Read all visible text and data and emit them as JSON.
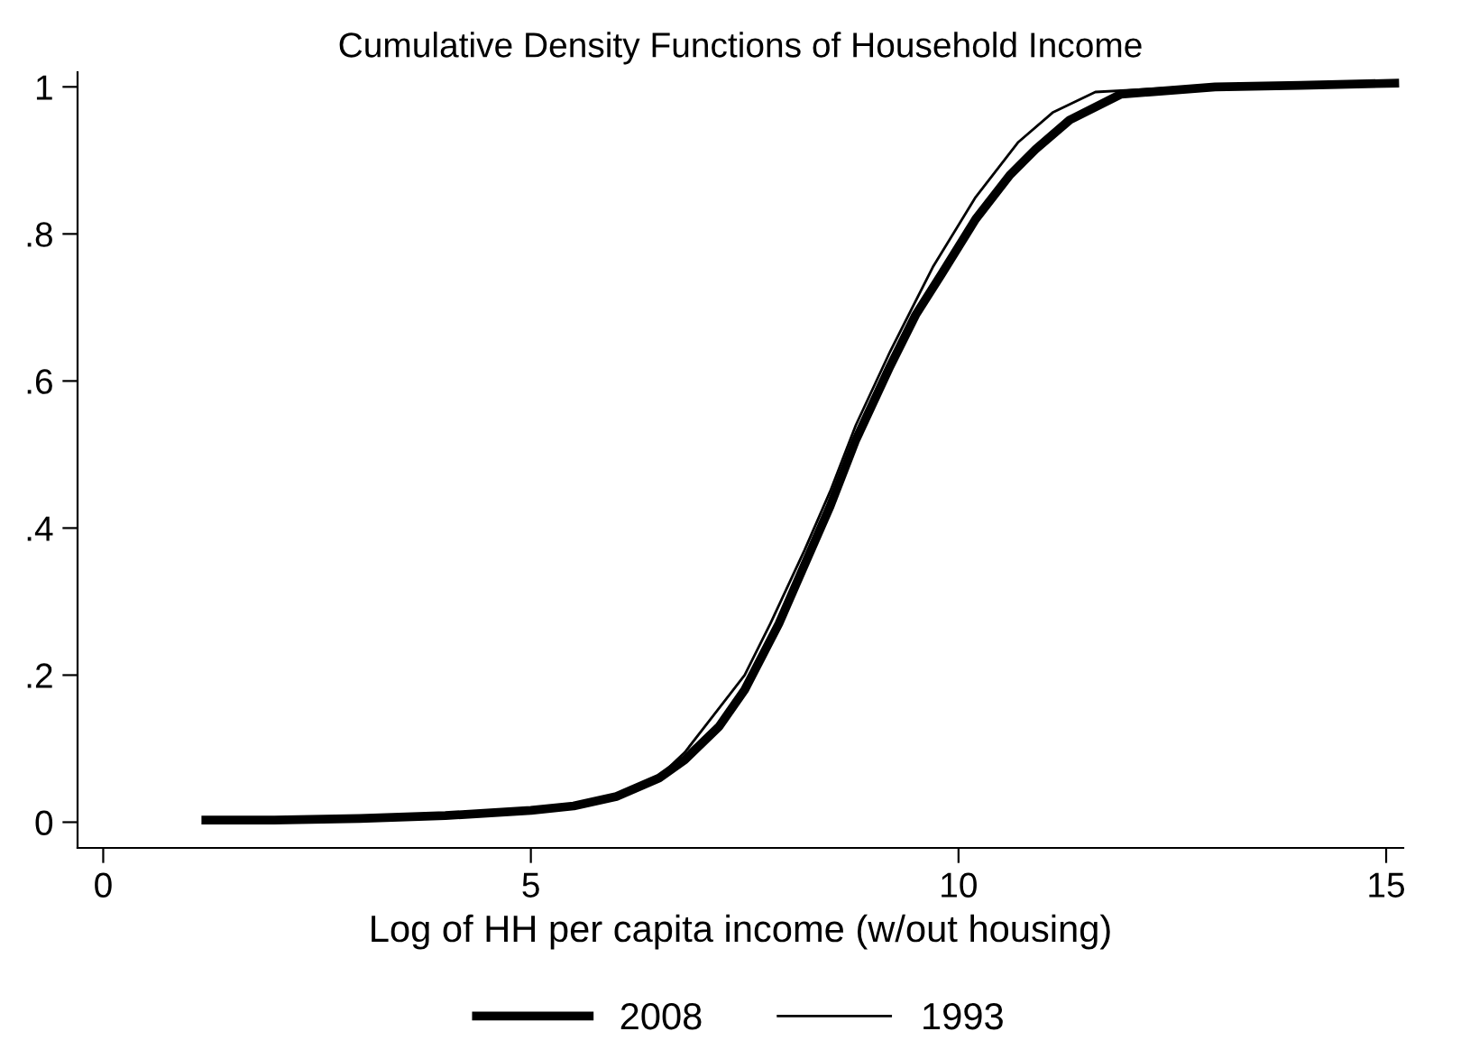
{
  "chart_data": {
    "type": "line",
    "title": "Cumulative Density Functions of Household Income",
    "xlabel": "Log of HH per capita income (w/out housing)",
    "xlim": [
      -0.3,
      15.2
    ],
    "xticks": [
      0,
      5,
      10,
      15
    ],
    "ylim": [
      -0.035,
      1.02
    ],
    "yticks": [
      0,
      {
        "value": 0.2,
        "label": ".2"
      },
      {
        "value": 0.4,
        "label": ".4"
      },
      {
        "value": 0.6,
        "label": ".6"
      },
      {
        "value": 0.8,
        "label": ".8"
      },
      1
    ],
    "grid": false,
    "legend": "bottom",
    "marker": "none",
    "line_style": "solid",
    "series": [
      {
        "name": "2008",
        "color": "#000000",
        "x": [
          1.2,
          2,
          3,
          4,
          5,
          5.5,
          6,
          6.5,
          6.8,
          7.2,
          7.5,
          7.9,
          8.2,
          8.5,
          8.8,
          9.2,
          9.5,
          9.8,
          10.2,
          10.6,
          10.9,
          11.3,
          11.9,
          13,
          14,
          15.1
        ],
        "values": [
          0.003,
          0.003,
          0.005,
          0.009,
          0.016,
          0.022,
          0.035,
          0.06,
          0.085,
          0.13,
          0.18,
          0.27,
          0.35,
          0.43,
          0.52,
          0.62,
          0.69,
          0.745,
          0.82,
          0.88,
          0.915,
          0.955,
          0.99,
          1.0,
          1.002,
          1.005
        ]
      },
      {
        "name": "1993",
        "color": "#000000",
        "x": [
          1.2,
          2,
          3,
          4,
          5,
          5.5,
          6,
          6.5,
          6.8,
          7.1,
          7.5,
          7.8,
          8.2,
          8.5,
          8.8,
          9.2,
          9.7,
          10.2,
          10.7,
          11.1,
          11.6,
          12.7
        ],
        "values": [
          0.003,
          0.003,
          0.005,
          0.009,
          0.016,
          0.022,
          0.033,
          0.062,
          0.095,
          0.14,
          0.2,
          0.27,
          0.37,
          0.45,
          0.54,
          0.64,
          0.755,
          0.85,
          0.925,
          0.965,
          0.993,
          1.0
        ]
      }
    ]
  }
}
